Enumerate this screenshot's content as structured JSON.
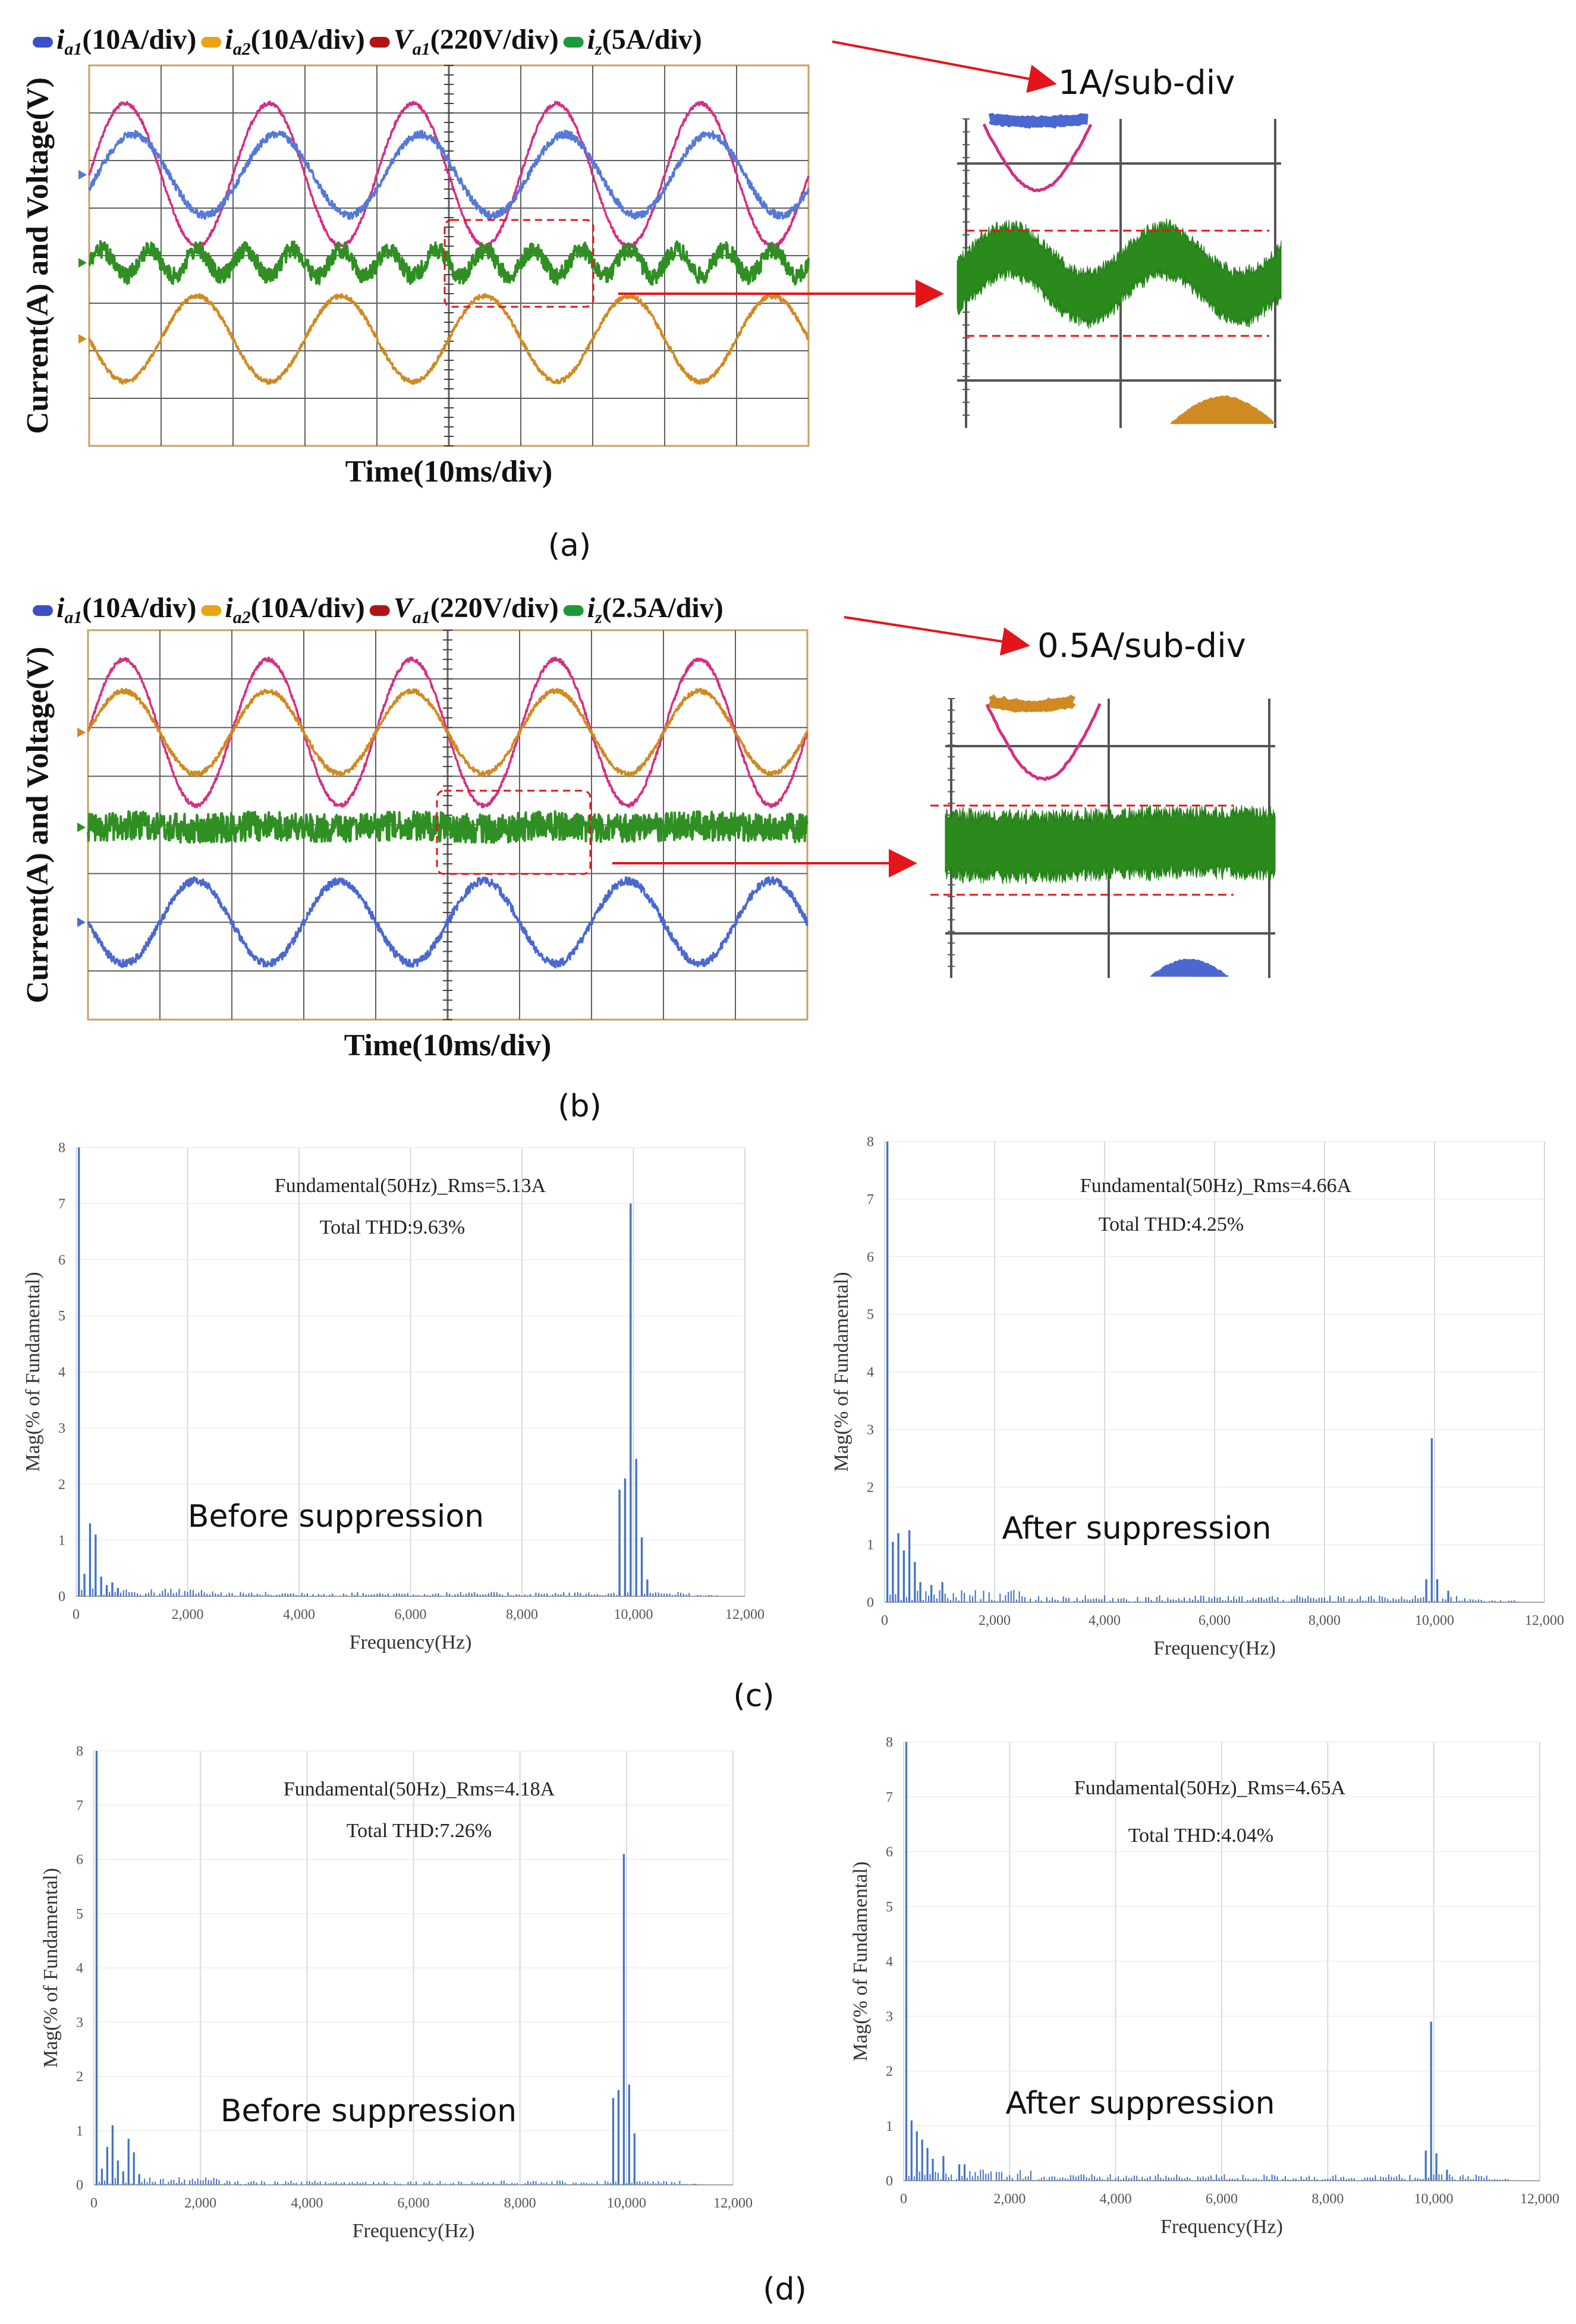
{
  "chart_data": [
    {
      "id": "a",
      "type": "line",
      "panel_label": "(a)",
      "xlabel": "Time(10ms/div)",
      "ylabel": "Current(A) and Voltage(V)",
      "legend": [
        {
          "name": "i",
          "sub": "a1",
          "scale": "(10A/div)",
          "color": "#3b4fc8"
        },
        {
          "name": "i",
          "sub": "a2",
          "scale": "(10A/div)",
          "color": "#e8a317"
        },
        {
          "name": "V",
          "sub": "a1",
          "scale": "(220V/div)",
          "color": "#b01515"
        },
        {
          "name": "i",
          "sub": "z",
          "scale": "(5A/div)",
          "color": "#1c9a3a"
        }
      ],
      "zoom_label": "1A/sub-div",
      "grid_divisions": {
        "x": 10,
        "y": 8
      },
      "series": [
        {
          "name": "Va1",
          "color": "#d42f82",
          "center_div": 2.3,
          "amp_div": 1.5,
          "period_div": 2.0,
          "phase": 0.0,
          "noise_div": 0.04
        },
        {
          "name": "ia1",
          "color": "#5579d6",
          "center_div": 2.3,
          "amp_div": 0.85,
          "period_div": 2.0,
          "phase": -0.35,
          "noise_div": 0.08
        },
        {
          "name": "iz",
          "color": "#2f8f23",
          "center_div": 4.15,
          "amp_div": 0.28,
          "period_div": 0.667,
          "phase": 0.0,
          "noise_div": 0.18
        },
        {
          "name": "ia2",
          "color": "#d08a22",
          "center_div": 5.75,
          "amp_div": 0.9,
          "period_div": 2.0,
          "phase": 3.14,
          "noise_div": 0.05
        }
      ]
    },
    {
      "id": "b",
      "type": "line",
      "panel_label": "(b)",
      "xlabel": "Time(10ms/div)",
      "ylabel": "Current(A) and Voltage(V)",
      "legend": [
        {
          "name": "i",
          "sub": "a1",
          "scale": "(10A/div)",
          "color": "#3b4fc8"
        },
        {
          "name": "i",
          "sub": "a2",
          "scale": "(10A/div)",
          "color": "#e8a317"
        },
        {
          "name": "V",
          "sub": "a1",
          "scale": "(220V/div)",
          "color": "#b01515"
        },
        {
          "name": "i",
          "sub": "z",
          "scale": "(2.5A/div)",
          "color": "#1c9a3a"
        }
      ],
      "zoom_label": "0.5A/sub-div",
      "grid_divisions": {
        "x": 10,
        "y": 8
      },
      "series": [
        {
          "name": "Va1",
          "color": "#d42f82",
          "center_div": 2.1,
          "amp_div": 1.5,
          "period_div": 2.0,
          "phase": 0.0,
          "noise_div": 0.04
        },
        {
          "name": "ia2",
          "color": "#d08a22",
          "center_div": 2.1,
          "amp_div": 0.85,
          "period_div": 2.0,
          "phase": 0.0,
          "noise_div": 0.05
        },
        {
          "name": "iz",
          "color": "#2f8f23",
          "center_div": 4.05,
          "amp_div": 0.03,
          "period_div": 2.0,
          "phase": 0.0,
          "noise_div": 0.3
        },
        {
          "name": "ia1",
          "color": "#4a68d0",
          "center_div": 6.0,
          "amp_div": 0.85,
          "period_div": 2.0,
          "phase": 3.14,
          "noise_div": 0.08
        }
      ]
    },
    {
      "id": "c-before",
      "type": "bar",
      "panel_label": "(c)",
      "title_line1": "Fundamental(50Hz)_Rms=5.13A",
      "title_line2": "Total THD:9.63%",
      "annotation": "Before suppression",
      "xlabel": "Frequency(Hz)",
      "ylabel": "Mag(% of Fundamental)",
      "xlim": [
        0,
        12000
      ],
      "ylim": [
        0,
        8
      ],
      "xticks": [
        "0",
        "2,000",
        "4,000",
        "6,000",
        "8,000",
        "10,000",
        "12,000"
      ],
      "yticks": [
        "0",
        "1",
        "2",
        "3",
        "4",
        "5",
        "6",
        "7",
        "8"
      ],
      "peaks": [
        {
          "f": 50,
          "v": 8.0
        },
        {
          "f": 150,
          "v": 0.4
        },
        {
          "f": 250,
          "v": 1.3
        },
        {
          "f": 350,
          "v": 1.1
        },
        {
          "f": 450,
          "v": 0.35
        },
        {
          "f": 550,
          "v": 0.2
        },
        {
          "f": 650,
          "v": 0.25
        },
        {
          "f": 750,
          "v": 0.15
        },
        {
          "f": 9750,
          "v": 1.9
        },
        {
          "f": 9850,
          "v": 2.1
        },
        {
          "f": 9950,
          "v": 7.0
        },
        {
          "f": 10050,
          "v": 2.45
        },
        {
          "f": 10150,
          "v": 1.05
        },
        {
          "f": 10250,
          "v": 0.3
        }
      ],
      "noise_level": 0.08
    },
    {
      "id": "c-after",
      "type": "bar",
      "panel_label": "",
      "title_line1": "Fundamental(50Hz)_Rms=4.66A",
      "title_line2": "Total THD:4.25%",
      "annotation": "After suppression",
      "xlabel": "Frequency(Hz)",
      "ylabel": "Mag(% of Fundamental)",
      "xlim": [
        0,
        12000
      ],
      "ylim": [
        0,
        8
      ],
      "xticks": [
        "0",
        "2,000",
        "4,000",
        "6,000",
        "8,000",
        "10,000",
        "12,000"
      ],
      "yticks": [
        "0",
        "1",
        "2",
        "3",
        "4",
        "5",
        "6",
        "7",
        "8"
      ],
      "peaks": [
        {
          "f": 50,
          "v": 8.0
        },
        {
          "f": 150,
          "v": 1.05
        },
        {
          "f": 250,
          "v": 1.2
        },
        {
          "f": 350,
          "v": 0.9
        },
        {
          "f": 450,
          "v": 1.25
        },
        {
          "f": 550,
          "v": 0.7
        },
        {
          "f": 650,
          "v": 0.35
        },
        {
          "f": 850,
          "v": 0.3
        },
        {
          "f": 1050,
          "v": 0.35
        },
        {
          "f": 9850,
          "v": 0.4
        },
        {
          "f": 9950,
          "v": 2.85
        },
        {
          "f": 10050,
          "v": 0.4
        },
        {
          "f": 10250,
          "v": 0.2
        }
      ],
      "noise_level": 0.12
    },
    {
      "id": "d-before",
      "type": "bar",
      "panel_label": "(d)",
      "title_line1": "Fundamental(50Hz)_Rms=4.18A",
      "title_line2": "Total THD:7.26%",
      "annotation": "Before suppression",
      "xlabel": "Frequency(Hz)",
      "ylabel": "Mag(% of Fundamental)",
      "xlim": [
        0,
        12000
      ],
      "ylim": [
        0,
        8
      ],
      "xticks": [
        "0",
        "2,000",
        "4,000",
        "6,000",
        "8,000",
        "10,000",
        "12,000"
      ],
      "yticks": [
        "0",
        "1",
        "2",
        "3",
        "4",
        "5",
        "6",
        "7",
        "8"
      ],
      "peaks": [
        {
          "f": 50,
          "v": 8.0
        },
        {
          "f": 150,
          "v": 0.3
        },
        {
          "f": 250,
          "v": 0.7
        },
        {
          "f": 350,
          "v": 1.1
        },
        {
          "f": 450,
          "v": 0.45
        },
        {
          "f": 550,
          "v": 0.25
        },
        {
          "f": 650,
          "v": 0.85
        },
        {
          "f": 750,
          "v": 0.6
        },
        {
          "f": 850,
          "v": 0.2
        },
        {
          "f": 9750,
          "v": 1.6
        },
        {
          "f": 9850,
          "v": 1.75
        },
        {
          "f": 9950,
          "v": 6.1
        },
        {
          "f": 10050,
          "v": 1.85
        },
        {
          "f": 10150,
          "v": 0.95
        }
      ],
      "noise_level": 0.08
    },
    {
      "id": "d-after",
      "type": "bar",
      "panel_label": "",
      "title_line1": "Fundamental(50Hz)_Rms=4.65A",
      "title_line2": "Total THD:4.04%",
      "annotation": "After suppression",
      "xlabel": "Frequency(Hz)",
      "ylabel": "Mag(% of Fundamental)",
      "xlim": [
        0,
        12000
      ],
      "ylim": [
        0,
        8
      ],
      "xticks": [
        "0",
        "2,000",
        "4,000",
        "6,000",
        "8,000",
        "10,000",
        "12,000"
      ],
      "yticks": [
        "0",
        "1",
        "2",
        "3",
        "4",
        "5",
        "6",
        "7",
        "8"
      ],
      "peaks": [
        {
          "f": 50,
          "v": 8.0
        },
        {
          "f": 150,
          "v": 1.1
        },
        {
          "f": 250,
          "v": 0.9
        },
        {
          "f": 350,
          "v": 0.75
        },
        {
          "f": 450,
          "v": 0.6
        },
        {
          "f": 550,
          "v": 0.4
        },
        {
          "f": 750,
          "v": 0.45
        },
        {
          "f": 1050,
          "v": 0.3
        },
        {
          "f": 1150,
          "v": 0.3
        },
        {
          "f": 9850,
          "v": 0.55
        },
        {
          "f": 9950,
          "v": 2.9
        },
        {
          "f": 10050,
          "v": 0.5
        },
        {
          "f": 10250,
          "v": 0.2
        }
      ],
      "noise_level": 0.12
    }
  ]
}
